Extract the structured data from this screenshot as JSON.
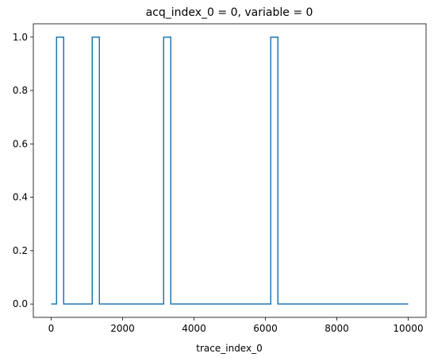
{
  "chart_data": {
    "type": "line",
    "title": "acq_index_0 = 0, variable = 0",
    "x_label": "trace_index_0",
    "x": [
      0,
      150,
      150,
      350,
      350,
      1150,
      1150,
      1350,
      1350,
      3150,
      3150,
      3350,
      3350,
      6150,
      6150,
      6350,
      6350,
      10000
    ],
    "series": [
      {
        "color": "#1f77b4",
        "values": [
          0,
          0,
          1,
          1,
          0,
          0,
          1,
          1,
          0,
          0,
          1,
          1,
          0,
          0,
          1,
          1,
          0,
          0
        ]
      }
    ],
    "xlim": [
      -500,
      10500
    ],
    "ylim": [
      -0.05,
      1.05
    ],
    "xticks": [
      0,
      2000,
      4000,
      6000,
      8000,
      10000
    ],
    "yticks": [
      {
        "value": 0,
        "label": "0.0"
      },
      {
        "value": 0.2,
        "label": "0.2"
      },
      {
        "value": 0.4,
        "label": "0.4"
      },
      {
        "value": 0.6,
        "label": "0.6"
      },
      {
        "value": 0.8,
        "label": "0.8"
      },
      {
        "value": 1,
        "label": "1.0"
      }
    ],
    "grid": false
  }
}
